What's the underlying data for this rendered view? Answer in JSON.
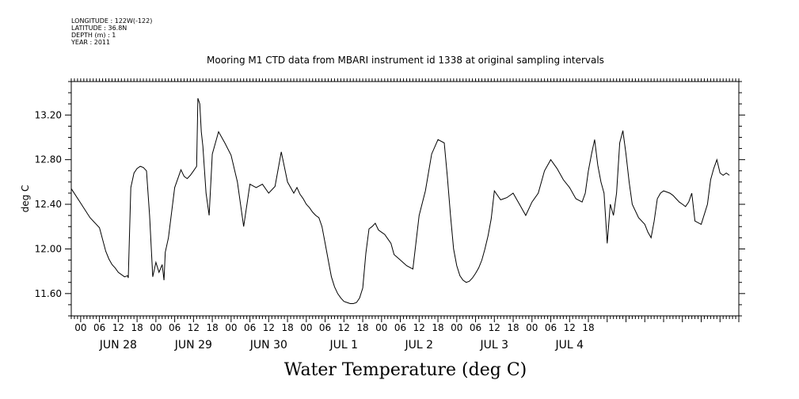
{
  "header": {
    "longitude": "LONGITUDE : 122W(-122)",
    "latitude": "LATITUDE : 36.8N",
    "depth": "DEPTH (m) : 1",
    "year": "YEAR : 2011"
  },
  "chart_data": {
    "type": "line",
    "title": "Mooring M1 CTD data from MBARI instrument id 1338 at original sampling intervals",
    "xlabel": "Water Temperature (deg C)",
    "ylabel": "deg C",
    "ylim": [
      11.4,
      13.5
    ],
    "xlim": [
      -3,
      210
    ],
    "x_unit": "hours from Jun 28 00:00",
    "y_ticks": [
      "11.60",
      "12.00",
      "12.40",
      "12.80",
      "13.20"
    ],
    "hour_ticks": [
      "00",
      "06",
      "12",
      "18",
      "00",
      "06",
      "12",
      "18",
      "00",
      "06",
      "12",
      "18",
      "00",
      "06",
      "12",
      "18",
      "00",
      "06",
      "12",
      "18",
      "00",
      "06",
      "12",
      "18",
      "00",
      "06",
      "12",
      "18"
    ],
    "day_labels": [
      "JUN 28",
      "JUN 29",
      "JUN 30",
      "JUL  1",
      "JUL  2",
      "JUL  3",
      "JUL  4"
    ],
    "series": [
      {
        "x": [
          -3,
          0,
          3,
          6,
          8,
          9,
          10,
          11,
          12,
          13,
          14,
          15,
          15.2,
          16,
          17,
          18,
          19,
          20,
          21,
          22,
          23,
          24,
          25,
          26,
          26.6,
          27,
          28,
          30,
          32,
          33,
          34,
          35,
          36,
          37,
          37.4,
          38,
          38.5,
          39,
          40,
          41,
          42,
          44,
          46,
          48,
          50,
          52,
          54,
          56,
          58,
          60,
          62,
          64,
          66,
          68,
          69,
          70,
          71,
          72,
          73,
          74,
          75,
          76,
          77,
          78,
          79,
          80,
          81,
          82,
          83,
          84,
          85,
          86,
          87,
          88,
          89,
          90,
          91,
          92,
          93,
          94,
          95,
          96,
          97,
          98,
          99,
          100,
          102,
          104,
          106,
          108,
          110,
          112,
          114,
          116,
          117,
          118,
          119,
          120,
          121,
          122,
          123,
          124,
          125,
          126,
          127,
          128,
          129,
          130,
          131,
          132,
          134,
          136,
          138,
          140,
          142,
          144,
          146,
          148,
          150,
          152,
          154,
          156,
          158,
          160,
          161,
          162,
          163,
          164,
          165,
          166,
          167,
          168,
          169,
          170,
          171,
          172,
          173,
          174,
          175,
          176,
          178,
          180,
          181,
          182,
          183,
          184,
          185,
          186,
          187,
          188,
          189,
          190,
          191,
          192,
          193,
          194,
          195,
          196,
          198,
          200,
          201,
          202,
          203,
          204,
          205,
          206,
          207
        ],
        "y": [
          12.54,
          12.41,
          12.28,
          12.19,
          11.98,
          11.91,
          11.86,
          11.83,
          11.79,
          11.77,
          11.75,
          11.76,
          11.74,
          12.55,
          12.68,
          12.72,
          12.74,
          12.73,
          12.7,
          12.3,
          11.75,
          11.88,
          11.79,
          11.86,
          11.72,
          11.97,
          12.1,
          12.55,
          12.71,
          12.65,
          12.63,
          12.66,
          12.7,
          12.74,
          13.35,
          13.3,
          13.05,
          12.92,
          12.5,
          12.3,
          12.85,
          13.05,
          12.95,
          12.84,
          12.6,
          12.2,
          12.58,
          12.55,
          12.58,
          12.5,
          12.56,
          12.87,
          12.6,
          12.5,
          12.55,
          12.49,
          12.45,
          12.4,
          12.37,
          12.33,
          12.3,
          12.28,
          12.2,
          12.05,
          11.9,
          11.75,
          11.66,
          11.6,
          11.56,
          11.53,
          11.52,
          11.51,
          11.51,
          11.52,
          11.56,
          11.65,
          11.96,
          12.18,
          12.2,
          12.23,
          12.17,
          12.15,
          12.13,
          12.09,
          12.05,
          11.95,
          11.9,
          11.85,
          11.82,
          12.3,
          12.52,
          12.85,
          12.98,
          12.95,
          12.65,
          12.3,
          12.0,
          11.85,
          11.76,
          11.72,
          11.7,
          11.71,
          11.74,
          11.78,
          11.83,
          11.9,
          12.0,
          12.12,
          12.27,
          12.52,
          12.44,
          12.46,
          12.5,
          12.4,
          12.3,
          12.42,
          12.5,
          12.7,
          12.8,
          12.72,
          12.62,
          12.55,
          12.45,
          12.42,
          12.5,
          12.7,
          12.85,
          12.98,
          12.75,
          12.6,
          12.5,
          12.05,
          12.4,
          12.3,
          12.5,
          12.95,
          13.06,
          12.85,
          12.6,
          12.4,
          12.28,
          12.22,
          12.15,
          12.1,
          12.25,
          12.45,
          12.5,
          12.52,
          12.51,
          12.5,
          12.48,
          12.45,
          12.42,
          12.4,
          12.38,
          12.42,
          12.5,
          12.25,
          12.22,
          12.4,
          12.62,
          12.72,
          12.8,
          12.68,
          12.66,
          12.68,
          12.66
        ]
      }
    ]
  }
}
